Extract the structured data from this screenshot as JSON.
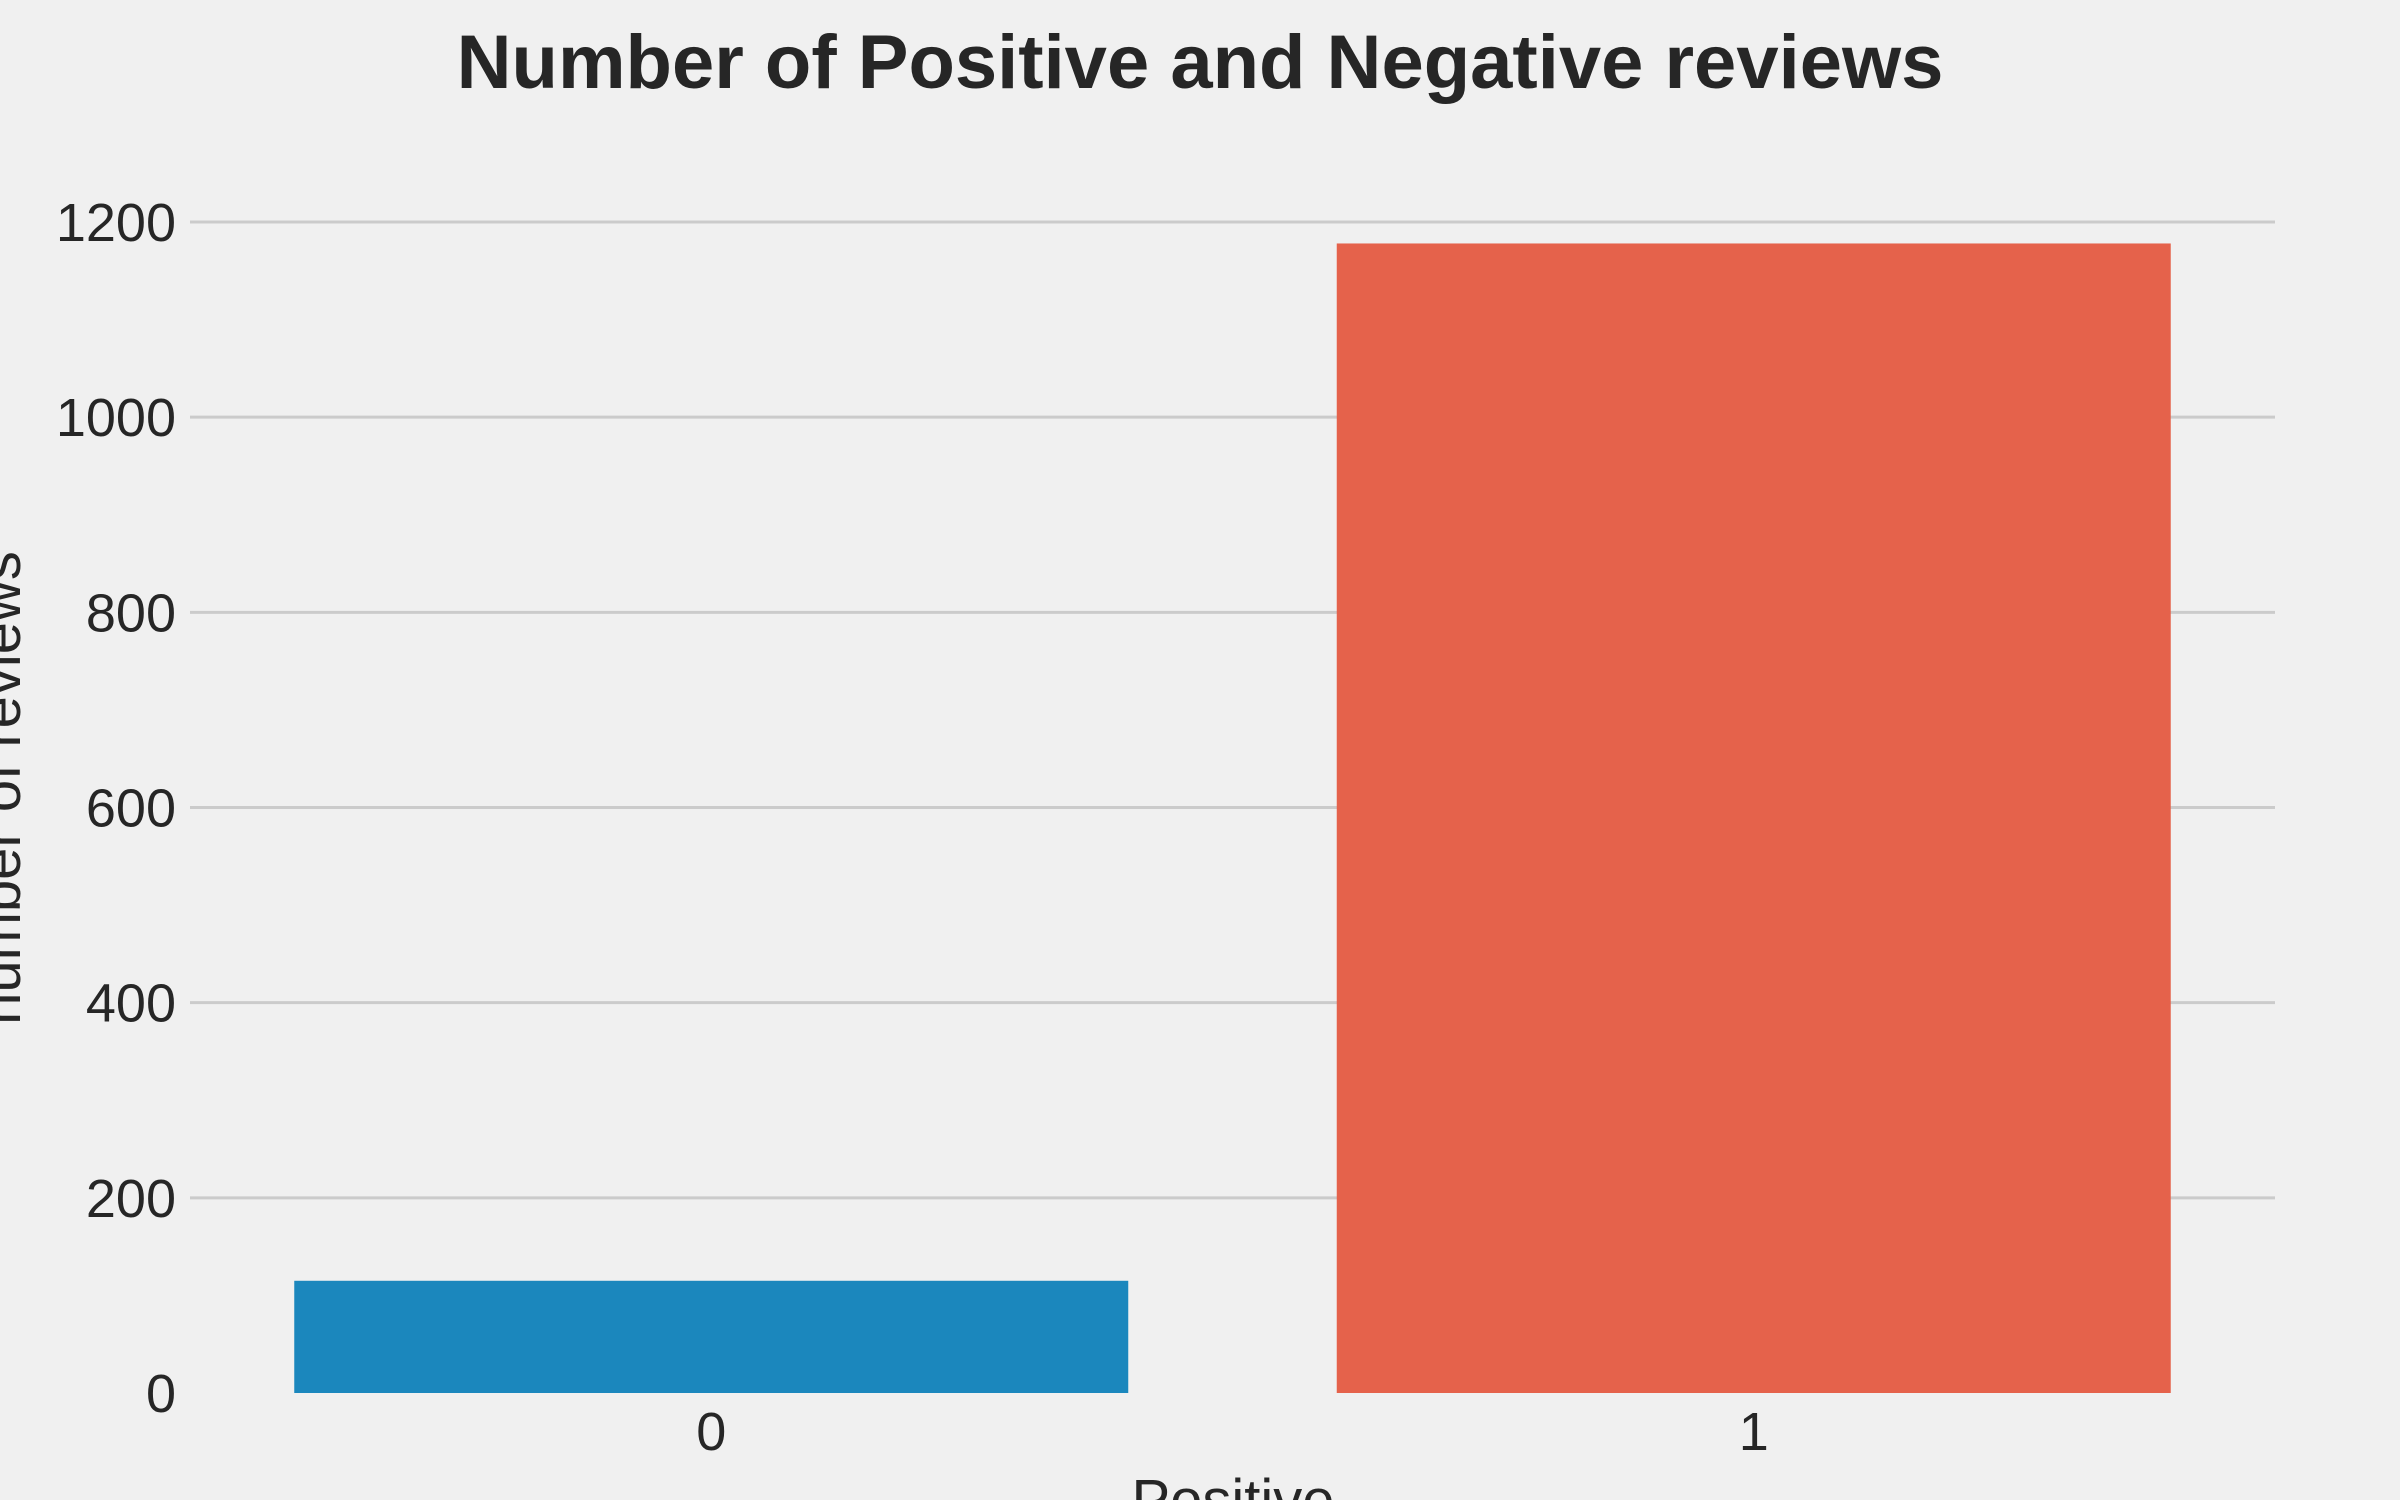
{
  "chart_data": {
    "type": "bar",
    "title": "Number of Positive and Negative reviews",
    "xlabel": "Positive",
    "ylabel": "number of reviews",
    "categories": [
      "0",
      "1"
    ],
    "values": [
      115,
      1178
    ],
    "colors": [
      "#1b87bd",
      "#e5624b"
    ],
    "ylim": [
      0,
      1200
    ],
    "yticks": [
      0,
      200,
      400,
      600,
      800,
      1000,
      1200
    ],
    "grid": true,
    "legend": "none"
  }
}
